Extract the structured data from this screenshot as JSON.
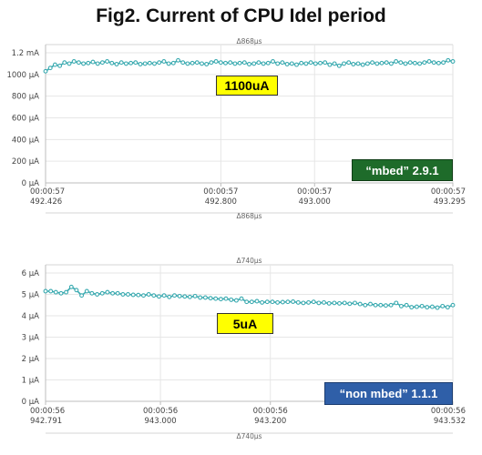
{
  "title": "Fig2. Current of CPU Idel period",
  "chart_data": [
    {
      "type": "line",
      "title": "",
      "duration_label": "Δ868µs",
      "yticks": [
        "0 µA",
        "200 µA",
        "400 µA",
        "600 µA",
        "800 µA",
        "1000 µA",
        "1.2 mA"
      ],
      "ylim": [
        0,
        1200
      ],
      "xlim": [
        492.426,
        493.295
      ],
      "xticks": [
        {
          "time": "00:00:57",
          "sub": "492.426",
          "x": 492.426
        },
        {
          "time": "00:00:57",
          "sub": "492.800",
          "x": 492.8
        },
        {
          "time": "00:00:57",
          "sub": "493.000",
          "x": 493.0
        },
        {
          "time": "00:00:57",
          "sub": "493.295",
          "x": 493.295
        }
      ],
      "series": [
        {
          "values": [
            1030,
            1060,
            1090,
            1080,
            1110,
            1100,
            1120,
            1110,
            1100,
            1105,
            1115,
            1100,
            1110,
            1120,
            1105,
            1095,
            1110,
            1100,
            1105,
            1110,
            1095,
            1100,
            1105,
            1100,
            1110,
            1120,
            1100,
            1105,
            1130,
            1110,
            1100,
            1105,
            1110,
            1100,
            1095,
            1110,
            1120,
            1110,
            1105,
            1110,
            1100,
            1105,
            1110,
            1095,
            1100,
            1110,
            1100,
            1105,
            1120,
            1100,
            1110,
            1095,
            1100,
            1090,
            1105,
            1100,
            1110,
            1100,
            1105,
            1110,
            1090,
            1100,
            1080,
            1100,
            1110,
            1095,
            1100,
            1090,
            1100,
            1110,
            1100,
            1105,
            1110,
            1100,
            1120,
            1110,
            1100,
            1110,
            1105,
            1100,
            1110,
            1120,
            1110,
            1105,
            1110,
            1130,
            1120
          ]
        }
      ],
      "annotation": "1100uA",
      "version_label": "“mbed” 2.9.1",
      "line_color": "#3aaab0"
    },
    {
      "type": "line",
      "title": "",
      "duration_label": "Δ740µs",
      "yticks": [
        "0 µA",
        "1 µA",
        "2 µA",
        "3 µA",
        "4 µA",
        "5 µA",
        "6 µA"
      ],
      "ylim": [
        0,
        6
      ],
      "xlim": [
        942.791,
        943.532
      ],
      "xticks": [
        {
          "time": "00:00:56",
          "sub": "942.791",
          "x": 942.791
        },
        {
          "time": "00:00:56",
          "sub": "943.000",
          "x": 943.0
        },
        {
          "time": "00:00:56",
          "sub": "943.200",
          "x": 943.2
        },
        {
          "time": "00:00:56",
          "sub": "943.532",
          "x": 943.532
        }
      ],
      "series": [
        {
          "values": [
            5.15,
            5.15,
            5.1,
            5.05,
            5.1,
            5.35,
            5.2,
            4.95,
            5.15,
            5.05,
            5.0,
            5.05,
            5.1,
            5.05,
            5.05,
            5.0,
            5.0,
            4.98,
            4.97,
            4.95,
            5.0,
            4.95,
            4.9,
            4.95,
            4.88,
            4.95,
            4.92,
            4.9,
            4.88,
            4.92,
            4.85,
            4.85,
            4.82,
            4.8,
            4.78,
            4.8,
            4.75,
            4.72,
            4.8,
            4.65,
            4.65,
            4.68,
            4.62,
            4.65,
            4.65,
            4.62,
            4.64,
            4.65,
            4.66,
            4.62,
            4.6,
            4.62,
            4.65,
            4.6,
            4.62,
            4.58,
            4.6,
            4.58,
            4.6,
            4.56,
            4.6,
            4.55,
            4.5,
            4.55,
            4.5,
            4.5,
            4.48,
            4.5,
            4.6,
            4.45,
            4.5,
            4.4,
            4.42,
            4.45,
            4.4,
            4.42,
            4.38,
            4.45,
            4.4,
            4.5
          ]
        }
      ],
      "annotation": "5uA",
      "version_label": "“non mbed” 1.1.1",
      "line_color": "#3aaab0"
    }
  ]
}
